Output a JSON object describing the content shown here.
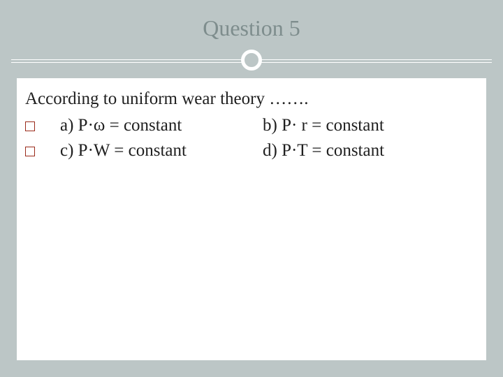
{
  "title": "Question 5",
  "prompt": "According to uniform wear theory …….",
  "options": {
    "a": "a) P·ω = constant",
    "b": "b) P· r = constant",
    "c": "c) P·W = constant",
    "d": "d) P·T = constant"
  },
  "colors": {
    "slide_bg": "#bcc6c6",
    "content_bg": "#ffffff",
    "title_text": "#7e8d8d",
    "body_text": "#1f1f1f",
    "bullet_border": "#9a2a1a",
    "rule_color": "#ffffff"
  },
  "typography": {
    "title_fontsize_pt": 24,
    "body_fontsize_pt": 19,
    "font_family": "Georgia"
  }
}
